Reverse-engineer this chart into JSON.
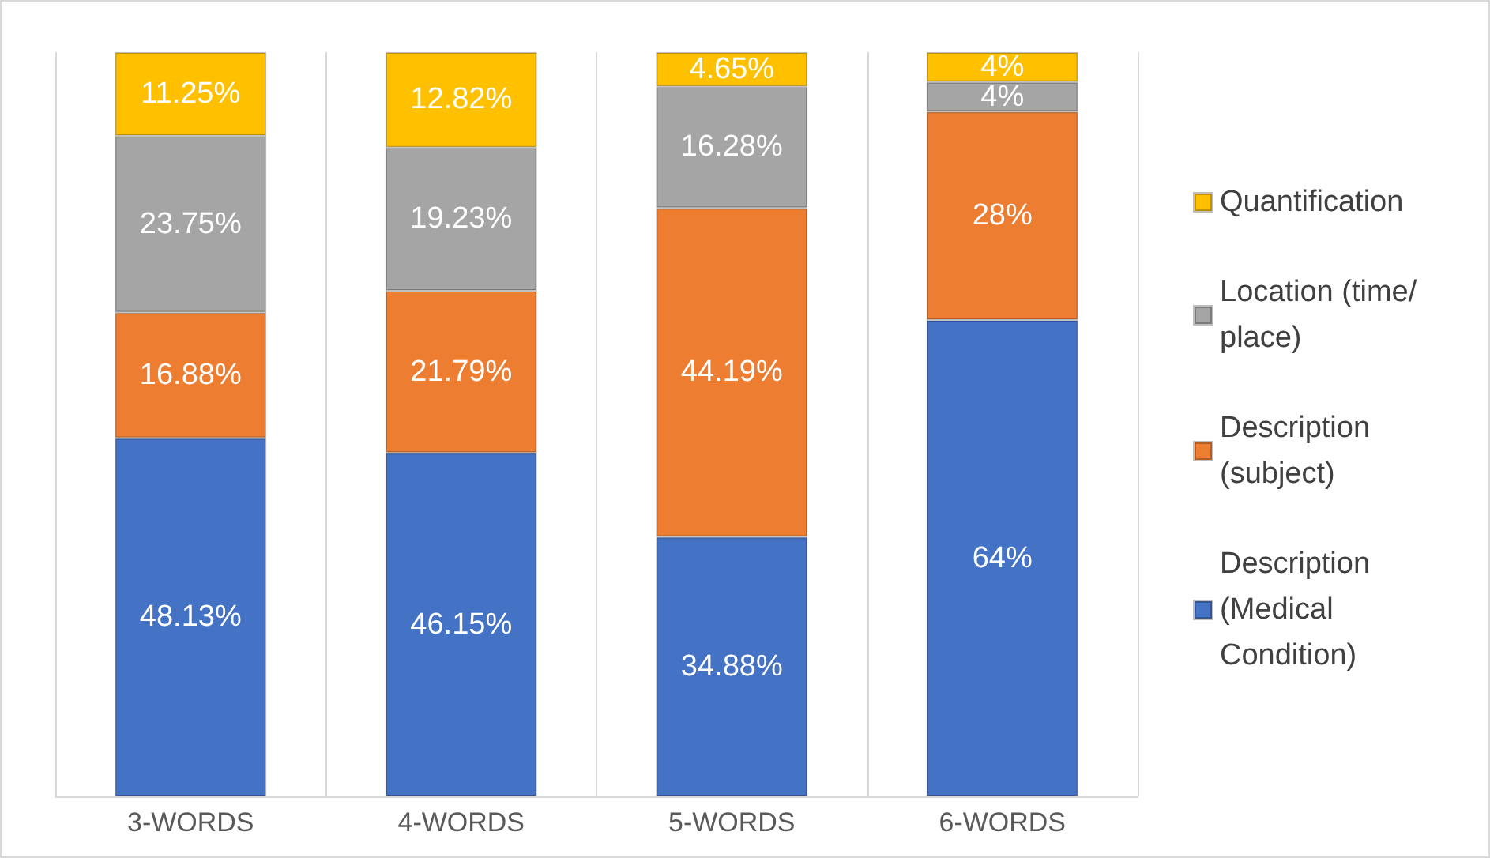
{
  "chart_data": {
    "type": "bar",
    "stacked": true,
    "categories": [
      "3-WORDS",
      "4-WORDS",
      "5-WORDS",
      "6-WORDS"
    ],
    "series": [
      {
        "name": "Description (Medical Condition)",
        "color": "#4472c4",
        "values": [
          48.13,
          46.15,
          34.88,
          64
        ],
        "value_labels": [
          "48.13%",
          "46.15%",
          "34.88%",
          "64%"
        ]
      },
      {
        "name": "Description (subject)",
        "color": "#ed7d31",
        "values": [
          16.88,
          21.79,
          44.19,
          28
        ],
        "value_labels": [
          "16.88%",
          "21.79%",
          "44.19%",
          "28%"
        ]
      },
      {
        "name": "Location (time/place)",
        "color": "#a5a5a5",
        "values": [
          23.75,
          19.23,
          16.28,
          4
        ],
        "value_labels": [
          "23.75%",
          "19.23%",
          "16.28%",
          "4%"
        ]
      },
      {
        "name": "Quantification",
        "color": "#ffc000",
        "values": [
          11.25,
          12.82,
          4.65,
          4
        ],
        "value_labels": [
          "11.25%",
          "12.82%",
          "4.65%",
          "4%"
        ]
      }
    ],
    "ylim": [
      0,
      100
    ],
    "tick_labels": "x",
    "grid": "x",
    "legend": "right"
  }
}
